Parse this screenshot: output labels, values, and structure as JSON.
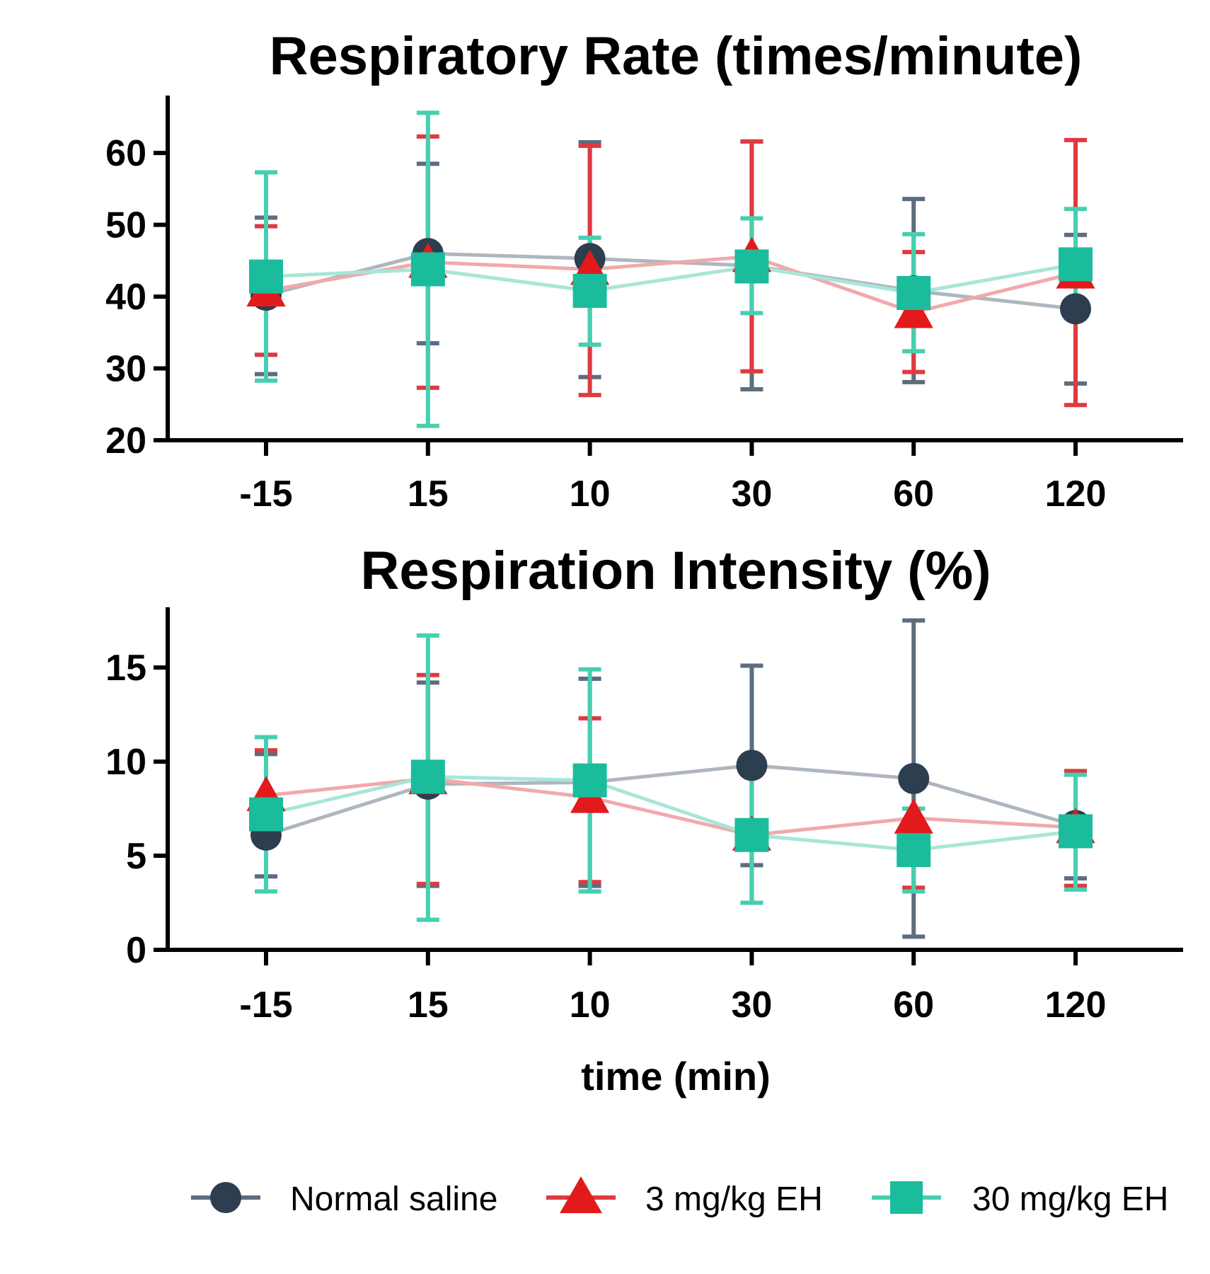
{
  "chart_data": [
    {
      "type": "line",
      "title": "Respiratory Rate (times/minute)",
      "xlabel": "",
      "ylabel": "",
      "categories": [
        "-15",
        "15",
        "10",
        "30",
        "60",
        "120"
      ],
      "ylim": [
        20,
        68
      ],
      "yticks": [
        20,
        30,
        40,
        50,
        60
      ],
      "error_bars": true,
      "series": [
        {
          "name": "Normal saline",
          "values": [
            40.2,
            46.0,
            45.3,
            44.3,
            40.8,
            38.3
          ],
          "err_low": [
            29.2,
            33.5,
            28.8,
            27.1,
            28.1,
            27.9
          ],
          "err_high": [
            51.0,
            58.5,
            61.5,
            61.6,
            53.6,
            48.6
          ]
        },
        {
          "name": "3 mg/kg EH",
          "values": [
            40.8,
            44.8,
            43.8,
            45.6,
            37.8,
            43.3
          ],
          "err_low": [
            31.9,
            27.3,
            26.3,
            29.6,
            29.5,
            24.9
          ],
          "err_high": [
            49.8,
            62.3,
            61.0,
            61.6,
            46.2,
            61.8
          ]
        },
        {
          "name": "30 mg/kg EH",
          "values": [
            42.8,
            43.8,
            40.8,
            44.2,
            40.5,
            44.5
          ],
          "err_low": [
            28.3,
            22.0,
            33.3,
            37.7,
            32.4,
            37.0
          ],
          "err_high": [
            57.3,
            65.6,
            48.2,
            50.9,
            48.7,
            52.2
          ]
        }
      ]
    },
    {
      "type": "line",
      "title": "Respiration Intensity (%)",
      "xlabel": "time (min)",
      "ylabel": "",
      "categories": [
        "-15",
        "15",
        "10",
        "30",
        "60",
        "120"
      ],
      "ylim": [
        0,
        18.2
      ],
      "yticks": [
        0,
        5,
        10,
        15
      ],
      "error_bars": true,
      "series": [
        {
          "name": "Normal saline",
          "values": [
            6.1,
            8.8,
            8.9,
            9.8,
            9.1,
            6.6
          ],
          "err_low": [
            3.9,
            3.4,
            3.4,
            4.5,
            0.7,
            3.8
          ],
          "err_high": [
            10.4,
            14.2,
            14.4,
            15.1,
            17.5,
            9.4
          ]
        },
        {
          "name": "3 mg/kg EH",
          "values": [
            8.2,
            9.1,
            8.1,
            6.1,
            7.0,
            6.5
          ],
          "err_low": [
            5.7,
            3.5,
            3.6,
            2.5,
            3.3,
            3.4
          ],
          "err_high": [
            10.6,
            14.6,
            12.3,
            9.6,
            7.5,
            9.5
          ]
        },
        {
          "name": "30 mg/kg EH",
          "values": [
            7.2,
            9.2,
            9.0,
            6.1,
            5.3,
            6.3
          ],
          "err_low": [
            3.1,
            1.6,
            3.1,
            2.5,
            3.1,
            3.2
          ],
          "err_high": [
            11.3,
            16.7,
            14.9,
            9.7,
            7.5,
            9.3
          ]
        }
      ]
    }
  ],
  "legend": {
    "placement": "bottom",
    "items": [
      {
        "label": "Normal saline",
        "marker": "circle-icon",
        "color": "#2c3e50"
      },
      {
        "label": "3 mg/kg EH",
        "marker": "triangle-icon",
        "color": "#e31a1c"
      },
      {
        "label": "30 mg/kg EH",
        "marker": "square-icon",
        "color": "#1abc9c"
      }
    ]
  },
  "colors": {
    "normal_saline": "#2c3e50",
    "eh_3": "#e31a1c",
    "eh_30": "#1abc9c",
    "normal_saline_err": "#5d6d7e",
    "eh_3_err": "#de3a40",
    "eh_30_err": "#46cfb0",
    "normal_saline_line": "#aeb6bf",
    "eh_3_line": "#f1a9ab",
    "eh_30_line": "#a8e6d8"
  }
}
